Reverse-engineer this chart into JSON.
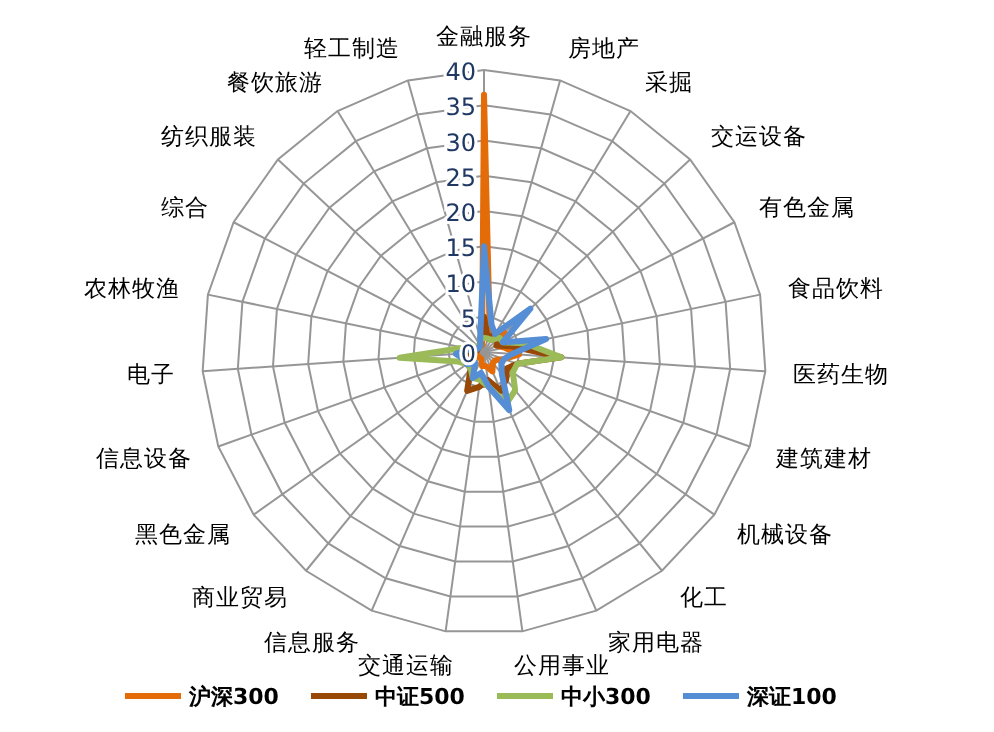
{
  "chart_data": {
    "type": "radar",
    "categories": [
      "金融服务",
      "房地产",
      "采掘",
      "交运设备",
      "有色金属",
      "食品饮料",
      "医药生物",
      "建筑建材",
      "机械设备",
      "化工",
      "家用电器",
      "公用事业",
      "交通运输",
      "信息服务",
      "商业贸易",
      "黑色金属",
      "信息设备",
      "电子",
      "农林牧渔",
      "综合",
      "纺织服装",
      "餐饮旅游",
      "轻工制造"
    ],
    "series": [
      {
        "name": "沪深300",
        "color": "#e36c09",
        "values": [
          36.5,
          3,
          2,
          4,
          2,
          3,
          5,
          3,
          2,
          2,
          3,
          2,
          2,
          1,
          1,
          1,
          2,
          2,
          1,
          1,
          1,
          1,
          1
        ]
      },
      {
        "name": "中证500",
        "color": "#984807",
        "values": [
          5,
          2,
          3,
          3,
          2,
          4,
          11,
          5,
          4,
          5,
          6,
          4,
          5,
          6,
          3,
          2,
          2,
          2,
          1,
          1,
          1,
          1,
          2
        ]
      },
      {
        "name": "中小300",
        "color": "#9bbb59",
        "values": [
          2,
          2,
          2,
          3,
          3,
          6,
          11,
          5,
          5,
          7,
          8,
          5,
          4,
          4,
          3,
          3,
          4,
          12,
          3,
          2,
          1,
          1,
          2
        ]
      },
      {
        "name": "深证100",
        "color": "#558ed5",
        "values": [
          15,
          4,
          3,
          9,
          3,
          9,
          4,
          3,
          3,
          4,
          9,
          5,
          3,
          4,
          2,
          3,
          3,
          4,
          2,
          1,
          1,
          1,
          2
        ]
      }
    ],
    "ylim": [
      0,
      40
    ],
    "yticks": [
      0,
      5,
      10,
      15,
      20,
      25,
      30,
      35,
      40
    ],
    "grid": true,
    "legend": "bottom"
  }
}
